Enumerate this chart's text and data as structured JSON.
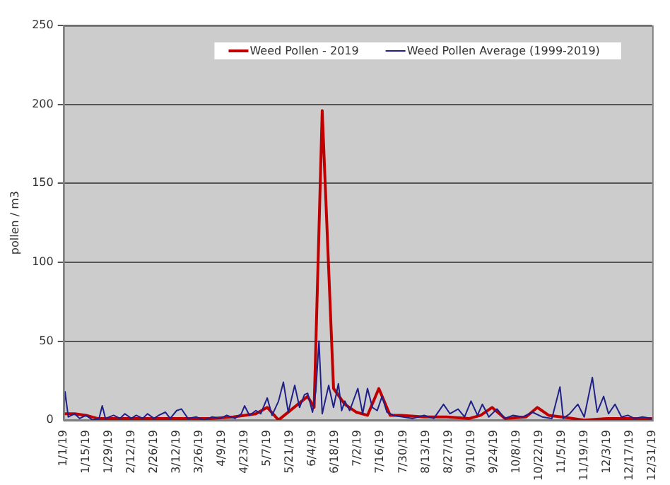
{
  "chart_data": {
    "type": "line",
    "ylabel": "pollen / m3",
    "legend": "top right",
    "grid": "y",
    "marker": "none",
    "line_style": "solid",
    "xlim": [
      "2019-01-01",
      "2019-12-31"
    ],
    "ylim": [
      0,
      250
    ],
    "yticks": [
      0,
      50,
      100,
      150,
      200,
      250
    ],
    "xticks": [
      {
        "value": "2019-01-01",
        "label": "1/1/19"
      },
      {
        "value": "2019-01-15",
        "label": "1/15/19"
      },
      {
        "value": "2019-01-29",
        "label": "1/29/19"
      },
      {
        "value": "2019-02-12",
        "label": "2/12/19"
      },
      {
        "value": "2019-02-26",
        "label": "2/26/19"
      },
      {
        "value": "2019-03-12",
        "label": "3/12/19"
      },
      {
        "value": "2019-03-26",
        "label": "3/26/19"
      },
      {
        "value": "2019-04-09",
        "label": "4/9/19"
      },
      {
        "value": "2019-04-23",
        "label": "4/23/19"
      },
      {
        "value": "2019-05-07",
        "label": "5/7/19"
      },
      {
        "value": "2019-05-21",
        "label": "5/21/19"
      },
      {
        "value": "2019-06-04",
        "label": "6/4/19"
      },
      {
        "value": "2019-06-18",
        "label": "6/18/19"
      },
      {
        "value": "2019-07-02",
        "label": "7/2/19"
      },
      {
        "value": "2019-07-16",
        "label": "7/16/19"
      },
      {
        "value": "2019-07-30",
        "label": "7/30/19"
      },
      {
        "value": "2019-08-13",
        "label": "8/13/19"
      },
      {
        "value": "2019-08-27",
        "label": "8/27/19"
      },
      {
        "value": "2019-09-10",
        "label": "9/10/19"
      },
      {
        "value": "2019-09-24",
        "label": "9/24/19"
      },
      {
        "value": "2019-10-08",
        "label": "10/8/19"
      },
      {
        "value": "2019-10-22",
        "label": "10/22/19"
      },
      {
        "value": "2019-11-05",
        "label": "11/5/19"
      },
      {
        "value": "2019-11-19",
        "label": "11/19/19"
      },
      {
        "value": "2019-12-03",
        "label": "12/3/19"
      },
      {
        "value": "2019-12-17",
        "label": "12/17/19"
      },
      {
        "value": "2019-12-31",
        "label": "12/31/19"
      }
    ],
    "series": [
      {
        "name": "Weed Pollen - 2019",
        "color": "#c00000",
        "x": [
          "2019-01-01",
          "2019-01-08",
          "2019-01-15",
          "2019-01-22",
          "2019-02-05",
          "2019-02-19",
          "2019-03-05",
          "2019-03-19",
          "2019-04-02",
          "2019-04-16",
          "2019-04-23",
          "2019-04-30",
          "2019-05-07",
          "2019-05-14",
          "2019-06-01",
          "2019-06-05",
          "2019-06-10",
          "2019-06-17",
          "2019-06-24",
          "2019-07-01",
          "2019-07-08",
          "2019-07-15",
          "2019-07-22",
          "2019-07-29",
          "2019-08-12",
          "2019-08-26",
          "2019-09-09",
          "2019-09-16",
          "2019-09-23",
          "2019-10-01",
          "2019-10-14",
          "2019-10-21",
          "2019-10-28",
          "2019-11-05",
          "2019-11-19",
          "2019-12-03",
          "2019-12-17",
          "2019-12-31"
        ],
        "values": [
          4,
          4,
          3,
          1,
          1,
          1,
          1,
          1,
          1,
          2,
          3,
          4,
          8,
          0,
          15,
          8,
          196,
          20,
          10,
          5,
          3,
          20,
          3,
          3,
          2,
          2,
          1,
          3,
          8,
          1,
          2,
          8,
          3,
          2,
          0,
          1,
          1,
          1
        ]
      },
      {
        "name": "Weed Pollen Average (1999-2019)",
        "color": "#20208a",
        "x": [
          "2019-01-01",
          "2019-01-02",
          "2019-01-04",
          "2019-01-08",
          "2019-01-11",
          "2019-01-15",
          "2019-01-19",
          "2019-01-23",
          "2019-01-25",
          "2019-01-27",
          "2019-02-01",
          "2019-02-05",
          "2019-02-08",
          "2019-02-12",
          "2019-02-15",
          "2019-02-19",
          "2019-02-22",
          "2019-02-26",
          "2019-03-01",
          "2019-03-05",
          "2019-03-08",
          "2019-03-12",
          "2019-03-15",
          "2019-03-19",
          "2019-03-24",
          "2019-03-29",
          "2019-04-03",
          "2019-04-08",
          "2019-04-12",
          "2019-04-17",
          "2019-04-21",
          "2019-04-23",
          "2019-04-26",
          "2019-04-30",
          "2019-05-03",
          "2019-05-07",
          "2019-05-10",
          "2019-05-14",
          "2019-05-17",
          "2019-05-20",
          "2019-05-24",
          "2019-05-27",
          "2019-05-30",
          "2019-06-01",
          "2019-06-04",
          "2019-06-06",
          "2019-06-08",
          "2019-06-10",
          "2019-06-14",
          "2019-06-17",
          "2019-06-20",
          "2019-06-22",
          "2019-06-24",
          "2019-06-27",
          "2019-07-02",
          "2019-07-05",
          "2019-07-08",
          "2019-07-11",
          "2019-07-14",
          "2019-07-17",
          "2019-07-20",
          "2019-07-24",
          "2019-07-30",
          "2019-08-05",
          "2019-08-12",
          "2019-08-18",
          "2019-08-24",
          "2019-08-28",
          "2019-09-02",
          "2019-09-06",
          "2019-09-10",
          "2019-09-14",
          "2019-09-17",
          "2019-09-21",
          "2019-09-26",
          "2019-10-01",
          "2019-10-06",
          "2019-10-12",
          "2019-10-18",
          "2019-10-24",
          "2019-10-30",
          "2019-11-04",
          "2019-11-06",
          "2019-11-10",
          "2019-11-15",
          "2019-11-19",
          "2019-11-24",
          "2019-11-27",
          "2019-12-01",
          "2019-12-04",
          "2019-12-08",
          "2019-12-12",
          "2019-12-16",
          "2019-12-20",
          "2019-12-25",
          "2019-12-31"
        ],
        "values": [
          1,
          18,
          2,
          4,
          1,
          3,
          0,
          1,
          9,
          1,
          3,
          1,
          4,
          1,
          3,
          1,
          4,
          1,
          3,
          5,
          1,
          6,
          7,
          1,
          2,
          0,
          2,
          1,
          3,
          1,
          4,
          9,
          3,
          6,
          4,
          14,
          3,
          12,
          24,
          5,
          22,
          8,
          16,
          17,
          5,
          18,
          50,
          4,
          22,
          8,
          23,
          6,
          12,
          6,
          20,
          4,
          20,
          8,
          6,
          15,
          5,
          3,
          2,
          1,
          3,
          1,
          10,
          4,
          7,
          2,
          12,
          3,
          10,
          2,
          7,
          1,
          3,
          2,
          5,
          2,
          1,
          21,
          1,
          4,
          10,
          2,
          27,
          5,
          15,
          4,
          10,
          2,
          3,
          1,
          2,
          1
        ]
      }
    ]
  }
}
